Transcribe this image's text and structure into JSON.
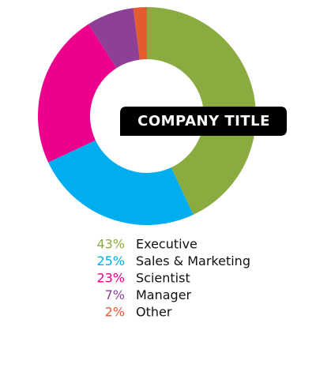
{
  "chart_data": {
    "type": "donut",
    "title": "COMPANY TITLE",
    "categories": [
      "Executive",
      "Sales & Marketing",
      "Scientist",
      "Manager",
      "Other"
    ],
    "values": [
      43,
      25,
      23,
      7,
      2
    ],
    "value_labels": [
      "43%",
      "25%",
      "23%",
      "7%",
      "2%"
    ],
    "colors": [
      "#8aab3f",
      "#00aeef",
      "#ec008c",
      "#8e3f96",
      "#e35b2f"
    ]
  }
}
